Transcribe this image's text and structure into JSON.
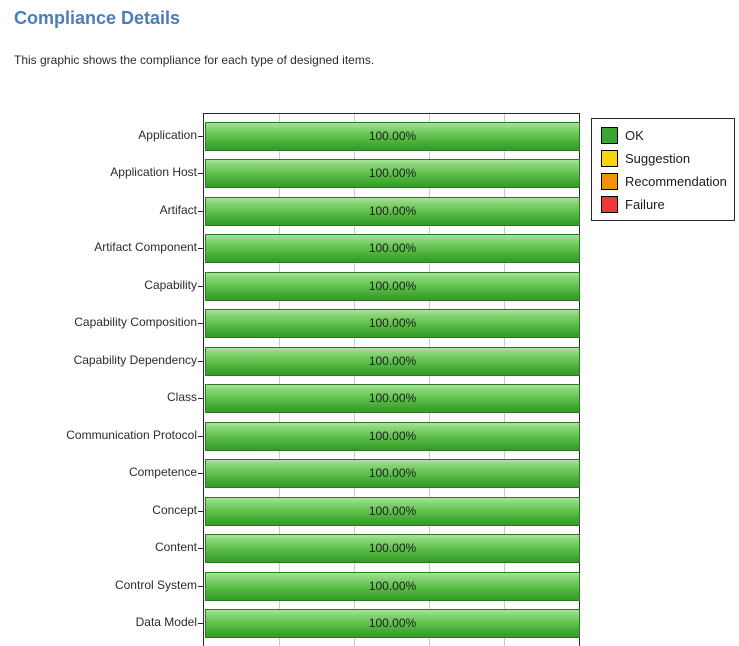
{
  "page": {
    "title": "Compliance Details",
    "subtitle": "This graphic shows the compliance for each type of designed items."
  },
  "chart_data": {
    "type": "bar",
    "orientation": "horizontal",
    "title": "",
    "xlabel": "",
    "ylabel": "",
    "xlim": [
      0,
      100
    ],
    "grid": true,
    "gridlines_percent": [
      20,
      40,
      60,
      80
    ],
    "categories": [
      "Application",
      "Application Host",
      "Artifact",
      "Artifact Component",
      "Capability",
      "Capability Composition",
      "Capability Dependency",
      "Class",
      "Communication Protocol",
      "Competence",
      "Concept",
      "Content",
      "Control System",
      "Data Model"
    ],
    "values": [
      100,
      100,
      100,
      100,
      100,
      100,
      100,
      100,
      100,
      100,
      100,
      100,
      100,
      100
    ],
    "value_label_suffix": "%",
    "bar_color": "#3ea52f",
    "legend_position": "top-right"
  },
  "legend": {
    "items": [
      {
        "label": "OK",
        "color": "#3aa62f"
      },
      {
        "label": "Suggestion",
        "color": "#f6d610"
      },
      {
        "label": "Recommendation",
        "color": "#f39207"
      },
      {
        "label": "Failure",
        "color": "#ee3a36"
      }
    ]
  },
  "colors": {
    "title_blue": "#4b7cbe",
    "bar_border_green": "#257c1c",
    "gridline_gray": "#c9c9c9"
  }
}
